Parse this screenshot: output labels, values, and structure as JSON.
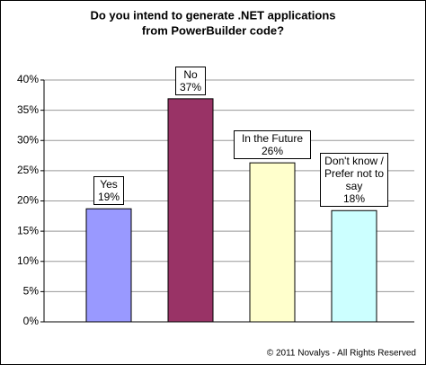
{
  "chart_data": {
    "type": "bar",
    "title": [
      "Do you intend to generate .NET applications",
      "from PowerBuilder code?"
    ],
    "categories": [
      "Yes",
      "No",
      "In the Future",
      "Don't know / Prefer not to say"
    ],
    "values": [
      18.7,
      36.9,
      26.3,
      18.4
    ],
    "value_labels": [
      "19%",
      "37%",
      "26%",
      "18%"
    ],
    "colors": [
      "#9999ff",
      "#993366",
      "#ffffcc",
      "#ccffff"
    ],
    "ylim": [
      0,
      40
    ],
    "yticks": [
      {
        "value": 0,
        "label": "0%"
      },
      {
        "value": 5,
        "label": "5%"
      },
      {
        "value": 10,
        "label": "10%"
      },
      {
        "value": 15,
        "label": "15%"
      },
      {
        "value": 20,
        "label": "20%"
      },
      {
        "value": 25,
        "label": "25%"
      },
      {
        "value": 30,
        "label": "30%"
      },
      {
        "value": 35,
        "label": "35%"
      },
      {
        "value": 40,
        "label": "40%"
      }
    ],
    "grid": true,
    "footer": "© 2011 Novalys - All Rights Reserved"
  }
}
